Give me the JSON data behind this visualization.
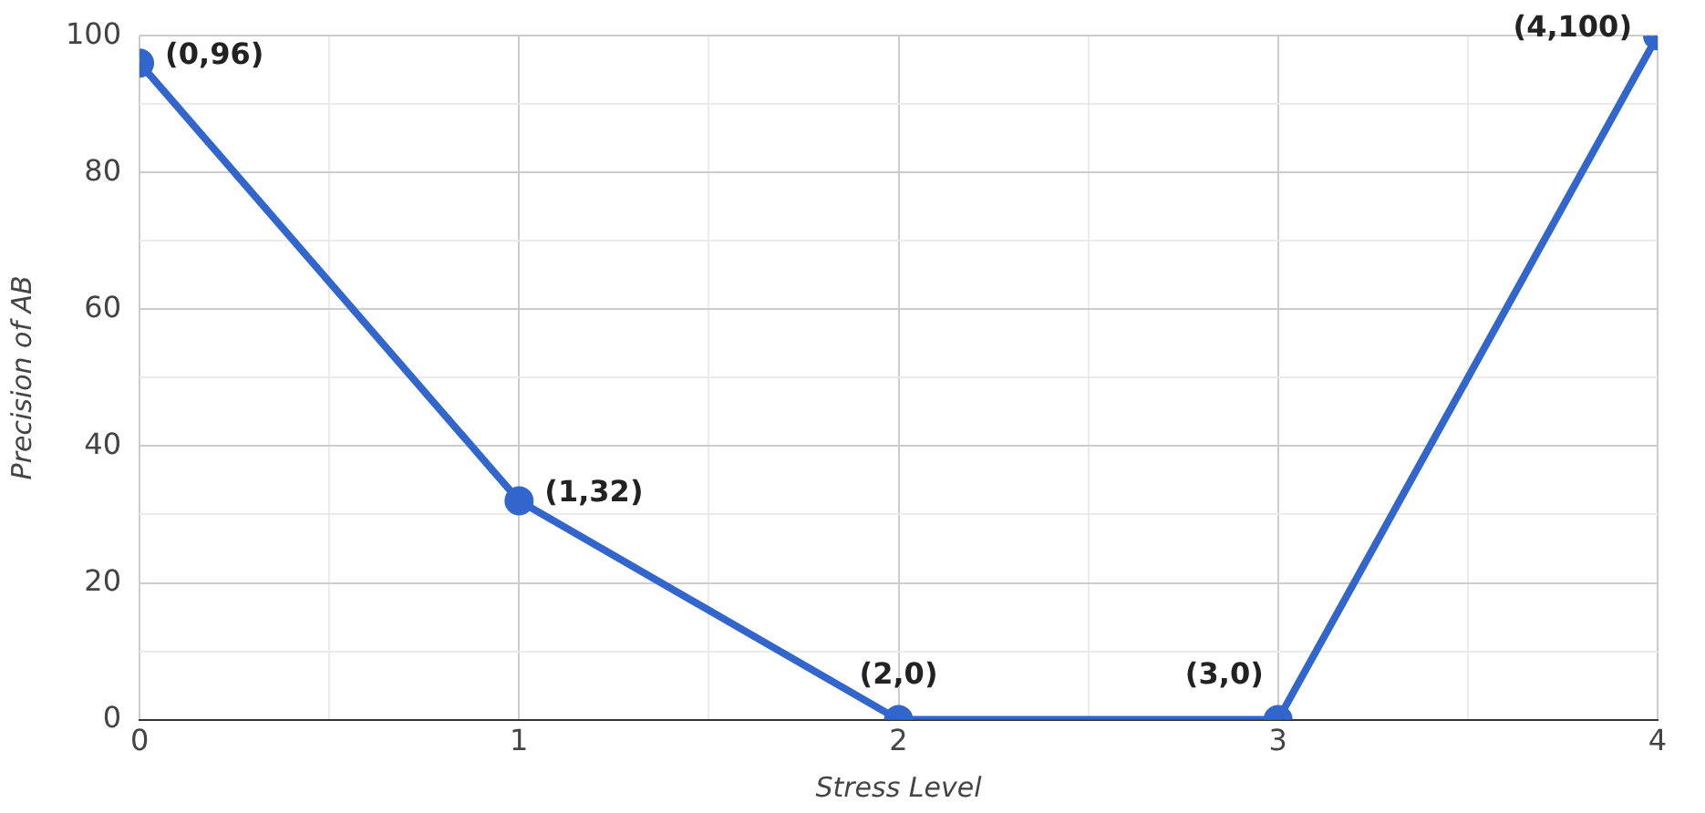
{
  "chart_data": {
    "type": "line",
    "xlabel": "Stress Level",
    "ylabel": "Precision of AB",
    "x": [
      0,
      1,
      2,
      3,
      4
    ],
    "series": [
      {
        "color": "#3366cc",
        "values": [
          96,
          32,
          0,
          0,
          100
        ]
      }
    ],
    "annotations": [
      {
        "text": "(0,96)",
        "x": 0,
        "y": 96
      },
      {
        "text": "(1,32)",
        "x": 1,
        "y": 32
      },
      {
        "text": "(2,0)",
        "x": 2,
        "y": 0
      },
      {
        "text": "(3,0)",
        "x": 3,
        "y": 0
      },
      {
        "text": "(4,100)",
        "x": 4,
        "y": 100
      }
    ],
    "xlim": [
      0,
      4
    ],
    "xticks": [
      0,
      {
        "value": 0.5,
        "label": null
      },
      1,
      {
        "value": 1.5,
        "label": null
      },
      2,
      {
        "value": 2.5,
        "label": null
      },
      3,
      {
        "value": 3.5,
        "label": null
      },
      4
    ],
    "ylim": [
      0,
      100
    ],
    "yticks": [
      0,
      {
        "value": 10,
        "label": null
      },
      20,
      {
        "value": 30,
        "label": null
      },
      40,
      {
        "value": 50,
        "label": null
      },
      60,
      {
        "value": 70,
        "label": null
      },
      80,
      {
        "value": 90,
        "label": null
      },
      100
    ],
    "grid": true,
    "marker": "circle",
    "line_style": "solid",
    "legend": false
  }
}
